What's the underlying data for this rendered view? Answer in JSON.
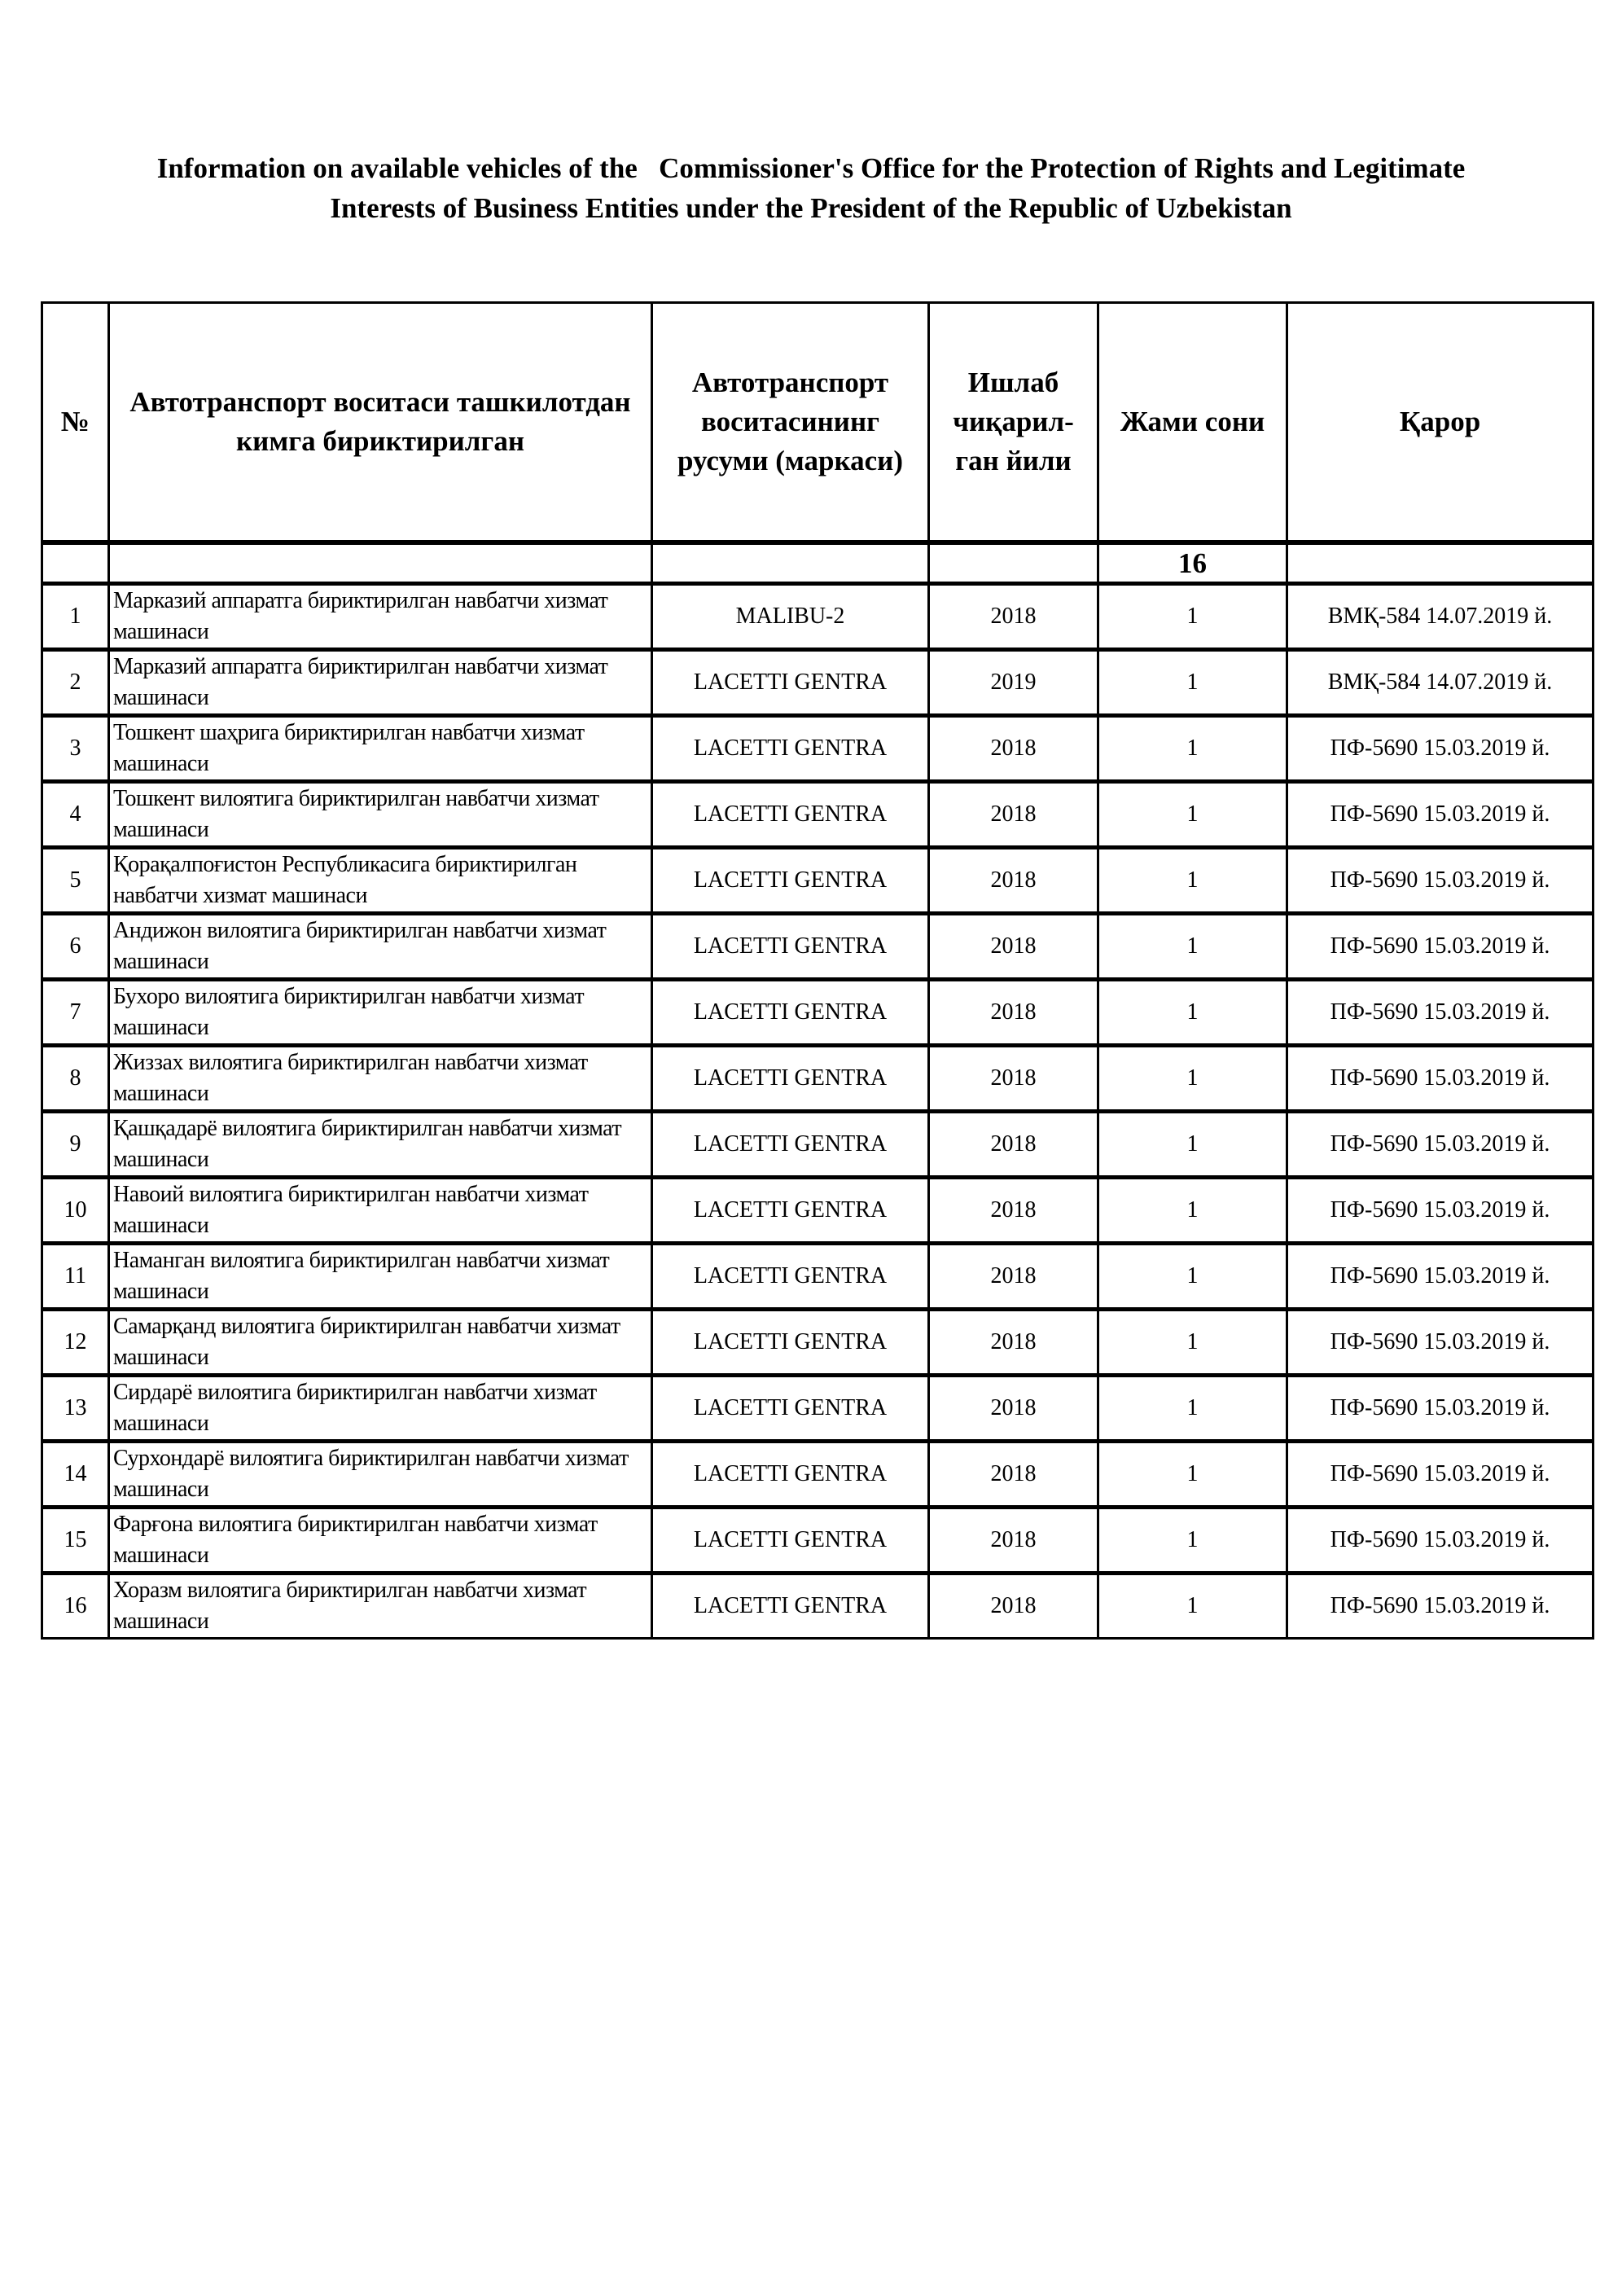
{
  "title": {
    "line1": "Information on available vehicles of the   Commissioner's Office for the Protection of Rights and Legitimate",
    "line2": "Interests of Business Entities under the President of the Republic of Uzbekistan"
  },
  "table": {
    "headers": [
      "№",
      "Автотранспорт воситаси ташкилотдан кимга бириктирилган",
      "Автотранспорт воситасининг русуми (маркаси)",
      "Ишлаб чиқарил-ган йили",
      "Жами сони",
      "Қарор"
    ],
    "total": "16",
    "rows": [
      [
        "1",
        "Марказий аппаратга бириктирилган навбатчи хизмат машинаси",
        "MALIBU-2",
        "2018",
        "1",
        "ВМҚ-584 14.07.2019 й."
      ],
      [
        "2",
        "Марказий аппаратга бириктирилган навбатчи хизмат машинаси",
        "LACETTI GENTRA",
        "2019",
        "1",
        "ВМҚ-584 14.07.2019 й."
      ],
      [
        "3",
        "Тошкент шаҳрига бириктирилган навбатчи хизмат машинаси",
        "LACETTI GENTRA",
        "2018",
        "1",
        "ПФ-5690 15.03.2019 й."
      ],
      [
        "4",
        "Тошкент вилоятига бириктирилган навбатчи хизмат машинаси",
        "LACETTI GENTRA",
        "2018",
        "1",
        "ПФ-5690 15.03.2019 й."
      ],
      [
        "5",
        "Қорақалпоғистон Республикасига бириктирилган навбатчи хизмат машинаси",
        "LACETTI GENTRA",
        "2018",
        "1",
        "ПФ-5690 15.03.2019 й."
      ],
      [
        "6",
        "Андижон вилоятига бириктирилган навбатчи хизмат машинаси",
        "LACETTI GENTRA",
        "2018",
        "1",
        "ПФ-5690 15.03.2019 й."
      ],
      [
        "7",
        "Бухоро вилоятига бириктирилган навбатчи хизмат машинаси",
        "LACETTI GENTRA",
        "2018",
        "1",
        "ПФ-5690 15.03.2019 й."
      ],
      [
        "8",
        "Жиззах вилоятига бириктирилган навбатчи хизмат машинаси",
        "LACETTI GENTRA",
        "2018",
        "1",
        "ПФ-5690 15.03.2019 й."
      ],
      [
        "9",
        "Қашқадарё вилоятига бириктирилган навбатчи хизмат машинаси",
        "LACETTI GENTRA",
        "2018",
        "1",
        "ПФ-5690 15.03.2019 й."
      ],
      [
        "10",
        "Навоий вилоятига бириктирилган навбатчи хизмат машинаси",
        "LACETTI GENTRA",
        "2018",
        "1",
        "ПФ-5690 15.03.2019 й."
      ],
      [
        "11",
        "Наманган вилоятига бириктирилган навбатчи хизмат машинаси",
        "LACETTI GENTRA",
        "2018",
        "1",
        "ПФ-5690 15.03.2019 й."
      ],
      [
        "12",
        "Самарқанд вилоятига бириктирилган навбатчи хизмат машинаси",
        "LACETTI GENTRA",
        "2018",
        "1",
        "ПФ-5690 15.03.2019 й."
      ],
      [
        "13",
        "Сирдарё вилоятига бириктирилган навбатчи хизмат машинаси",
        "LACETTI GENTRA",
        "2018",
        "1",
        "ПФ-5690 15.03.2019 й."
      ],
      [
        "14",
        "Сурхондарё вилоятига бириктирилган навбатчи хизмат машинаси",
        "LACETTI GENTRA",
        "2018",
        "1",
        "ПФ-5690 15.03.2019 й."
      ],
      [
        "15",
        "Фарғона вилоятига бириктирилган навбатчи хизмат машинаси",
        "LACETTI GENTRA",
        "2018",
        "1",
        "ПФ-5690 15.03.2019 й."
      ],
      [
        "16",
        "Хоразм вилоятига бириктирилган навбатчи хизмат машинаси",
        "LACETTI GENTRA",
        "2018",
        "1",
        "ПФ-5690 15.03.2019 й."
      ]
    ]
  }
}
